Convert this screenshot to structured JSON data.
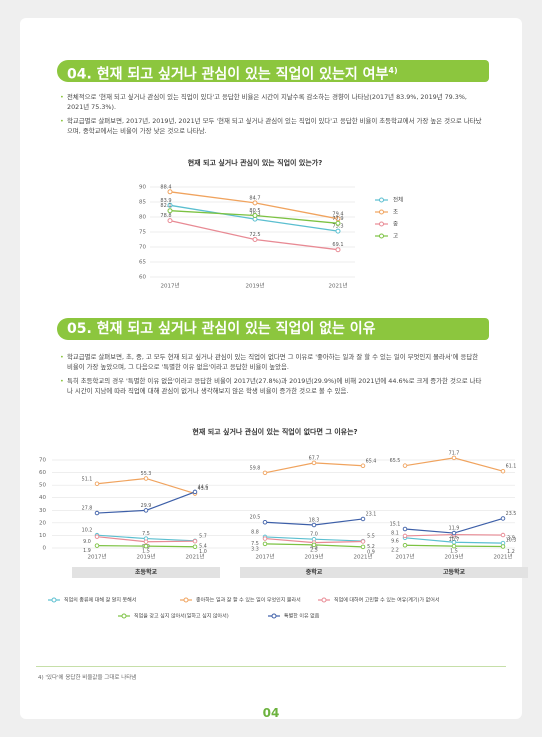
{
  "page": {
    "footnote": "4) '있다'에 응답한 비율값을 그대로 나타냄",
    "page_number": "04"
  },
  "sections": [
    {
      "number": "04.",
      "title": "현재 되고 싶거나 관심이 있는 직업이 있는지 여부",
      "title_note": "4)",
      "bullets": [
        "전체적으로 '현재 되고 싶거나 관심이 있는 직업이 있다'고 응답한 비율은 시간이 지날수록 감소하는 경향이 나타남(2017년 83.9%, 2019년 79.3%, 2021년 75.3%).",
        "학교급별로 살펴보면, 2017년, 2019년, 2021년 모두 '현재 되고 싶거나 관심이 있는 직업이 있다'고 응답한 비율이 초등학교에서 가장 높은 것으로 나타났으며, 중학교에서는 비율이 가장 낮은 것으로 나타남."
      ]
    },
    {
      "number": "05.",
      "title": "현재 되고 싶거나 관심이 있는 직업이 없는 이유",
      "bullets": [
        "학교급별로 살펴보면, 초, 중, 고 모두 현재 되고 싶거나 관심이 있는 직업이 없다면 그 이유로 '좋아하는 일과 잘 할 수 있는 일이 무엇인지 몰라서'에 응답한 비율이 가장 높았으며, 그 다음으로 '특별한 이유 없음'이라고 응답한 비율이 높았음.",
        "특히 초등학교의 경우 '특별한 이유 없음'이라고 응답한 비율이 2017년(27.8%)과 2019년(29.9%)에 비해 2021년에 44.6%로 크게 증가한 것으로 나타나 시간이 지남에 따라 직업에 대해 관심이 없거나 생각해보지 않은 학생 비율이 증가한 것으로 볼 수 있음."
      ]
    }
  ],
  "chart_data": [
    {
      "type": "line",
      "title": "현재 되고 싶거나 관심이 있는 직업이 있는가?",
      "categories": [
        "2017년",
        "2019년",
        "2021년"
      ],
      "ylim": [
        60,
        90
      ],
      "yticks": [
        60,
        65,
        70,
        75,
        80,
        85,
        90
      ],
      "grid": true,
      "legend": "right",
      "series": [
        {
          "name": "전체",
          "color": "#5bbfd0",
          "values": [
            83.9,
            79.3,
            75.3
          ]
        },
        {
          "name": "초",
          "color": "#f0a35e",
          "values": [
            88.4,
            84.7,
            79.4
          ]
        },
        {
          "name": "중",
          "color": "#e88a94",
          "values": [
            78.8,
            72.5,
            69.1
          ]
        },
        {
          "name": "고",
          "color": "#7cc242",
          "values": [
            82.1,
            80.5,
            77.9
          ]
        }
      ]
    },
    {
      "type": "line",
      "title": "현재 되고 싶거나 관심이 있는 직업이 없다면 그 이유는?",
      "categories": [
        "2017년",
        "2019년",
        "2021년"
      ],
      "ylim": [
        0,
        70
      ],
      "yticks": [
        0,
        10,
        20,
        30,
        40,
        50,
        60,
        70
      ],
      "grid": true,
      "legend": "bottom",
      "series": [
        {
          "name": "직업의 종류에 대해 잘 알지 못해서",
          "color": "#5bbfd0"
        },
        {
          "name": "좋아하는 일과 잘 할 수 있는 일이 무엇인지 몰라서",
          "color": "#f0a35e"
        },
        {
          "name": "직업에 대하여 고민할 수 있는 여유(계기)가 없어서",
          "color": "#e88a94"
        },
        {
          "name": "직업을 갖고 싶지 않아서(일하고 싶지 않아서)",
          "color": "#7cc242"
        },
        {
          "name": "특별한 이유 없음",
          "color": "#3d5fa8"
        }
      ],
      "panels": [
        {
          "label": "초등학교",
          "series": [
            {
              "values": [
                10.2,
                7.5,
                5.7
              ]
            },
            {
              "values": [
                51.1,
                55.3,
                43.3
              ]
            },
            {
              "values": [
                9,
                5,
                5.4
              ],
              "value_labels": [
                "9.0",
                "5.0",
                "5.4"
              ]
            },
            {
              "values": [
                1.9,
                1.5,
                1
              ],
              "value_labels": [
                "1.9",
                "1.5",
                "1.0"
              ]
            },
            {
              "values": [
                27.8,
                29.9,
                44.6
              ]
            }
          ]
        },
        {
          "label": "중학교",
          "series": [
            {
              "values": [
                8.8,
                7,
                5.5
              ],
              "value_labels": [
                "8.8",
                "7.0",
                "5.5"
              ]
            },
            {
              "values": [
                59.8,
                67.7,
                65.4
              ]
            },
            {
              "values": [
                7.5,
                4.3,
                5.2
              ]
            },
            {
              "values": [
                3.3,
                2.5,
                0.9
              ]
            },
            {
              "values": [
                20.5,
                18.3,
                23.1
              ]
            }
          ]
        },
        {
          "label": "고등학교",
          "series": [
            {
              "values": [
                8.1,
                4.6,
                3.9
              ]
            },
            {
              "values": [
                65.5,
                71.7,
                61.1
              ]
            },
            {
              "values": [
                9.6,
                10.7,
                10.3
              ]
            },
            {
              "values": [
                2.2,
                1.5,
                1.2
              ]
            },
            {
              "values": [
                15.1,
                11.9,
                23.5
              ]
            }
          ]
        }
      ]
    }
  ]
}
